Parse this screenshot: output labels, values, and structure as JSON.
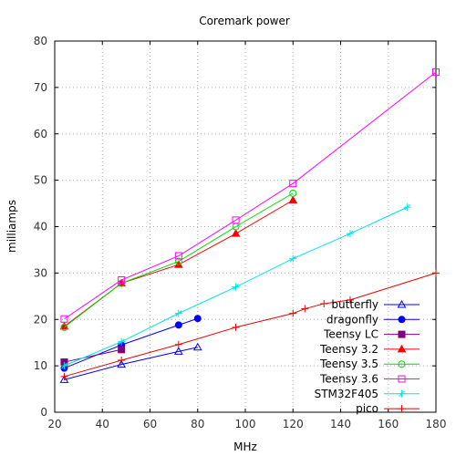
{
  "chart_data": {
    "type": "line",
    "title": "Coremark power",
    "xlabel": "MHz",
    "ylabel": "milliamps",
    "xlim": [
      20,
      180
    ],
    "ylim": [
      0,
      80
    ],
    "xticks": [
      20,
      40,
      60,
      80,
      100,
      120,
      140,
      160,
      180
    ],
    "yticks": [
      0,
      10,
      20,
      30,
      40,
      50,
      60,
      70,
      80
    ],
    "grid": true,
    "legend_position": "bottom-right",
    "series": [
      {
        "name": "butterfly",
        "color": "#0000ff",
        "marker": "triangle-open",
        "x": [
          24,
          48,
          72,
          80
        ],
        "y": [
          7.0,
          10.3,
          13.1,
          14.0
        ]
      },
      {
        "name": "dragonfly",
        "color": "#0000ff",
        "marker": "circle-filled",
        "x": [
          24,
          48,
          72,
          80
        ],
        "y": [
          9.5,
          14.5,
          18.8,
          20.2
        ]
      },
      {
        "name": "Teensy LC",
        "color": "#800080",
        "marker": "square-filled",
        "x": [
          24,
          48
        ],
        "y": [
          10.8,
          13.5
        ]
      },
      {
        "name": "Teensy 3.2",
        "color": "#ff0000",
        "marker": "triangle-filled",
        "x": [
          24,
          48,
          72,
          96,
          120
        ],
        "y": [
          18.5,
          27.8,
          31.8,
          38.5,
          45.7
        ]
      },
      {
        "name": "Teensy 3.5",
        "color": "#00dd00",
        "marker": "circle-open",
        "x": [
          24,
          48,
          72,
          96,
          120
        ],
        "y": [
          18.3,
          27.8,
          32.5,
          40.0,
          47.2
        ]
      },
      {
        "name": "Teensy 3.6",
        "color": "#ff00ff",
        "marker": "square-open",
        "x": [
          24,
          48,
          72,
          96,
          120,
          180
        ],
        "y": [
          20.1,
          28.5,
          33.7,
          41.4,
          49.3,
          73.3
        ]
      },
      {
        "name": "STM32F405",
        "color": "#00e5e5",
        "marker": "tri-plus",
        "x": [
          24,
          48,
          72,
          96,
          120,
          144,
          168
        ],
        "y": [
          10.0,
          15.2,
          21.3,
          27.0,
          33.1,
          38.5,
          44.2
        ]
      },
      {
        "name": "pico",
        "color": "#ee0000",
        "marker": "plus",
        "x": [
          24,
          48,
          72,
          96,
          120,
          125,
          133,
          144,
          180
        ],
        "y": [
          7.7,
          11.2,
          14.6,
          18.3,
          21.3,
          22.3,
          23.4,
          24.2,
          30.0
        ]
      }
    ]
  }
}
